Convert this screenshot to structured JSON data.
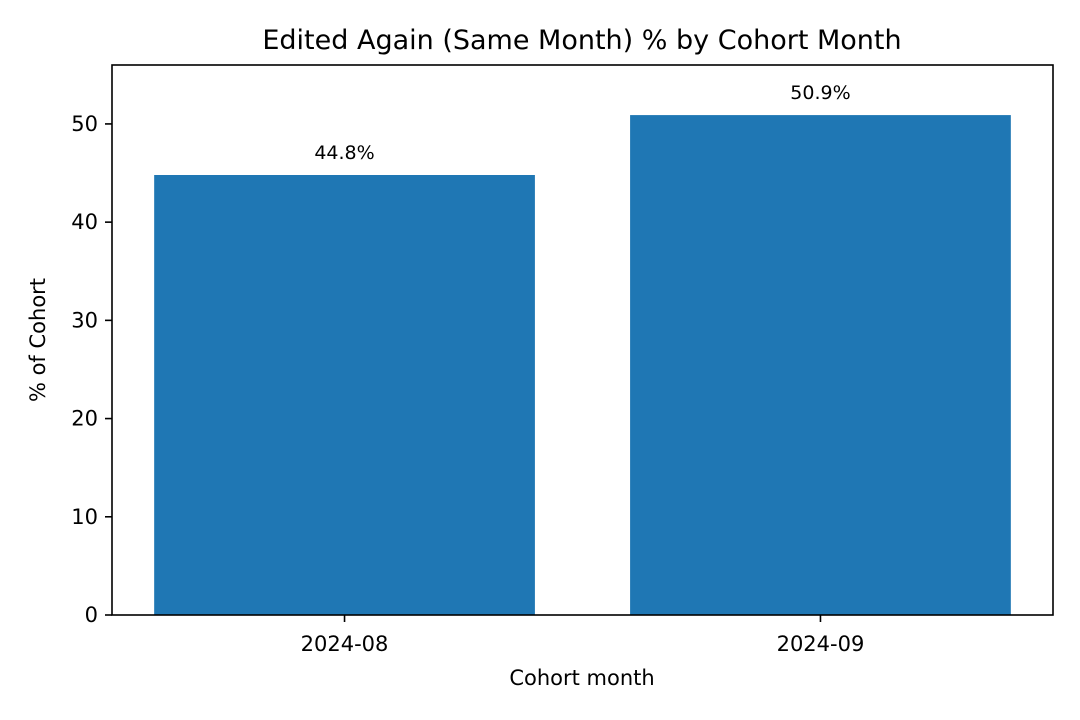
{
  "chart_data": {
    "type": "bar",
    "title": "Edited Again (Same Month) % by Cohort Month",
    "xlabel": "Cohort month",
    "ylabel": "% of Cohort",
    "categories": [
      "2024-08",
      "2024-09"
    ],
    "values": [
      44.8,
      50.9
    ],
    "data_labels": [
      "44.8%",
      "50.9%"
    ],
    "ylim": [
      0,
      56
    ],
    "yticks": [
      0,
      10,
      20,
      30,
      40,
      50
    ],
    "bar_color": "#1f77b4",
    "grid": false,
    "legend": "none"
  }
}
